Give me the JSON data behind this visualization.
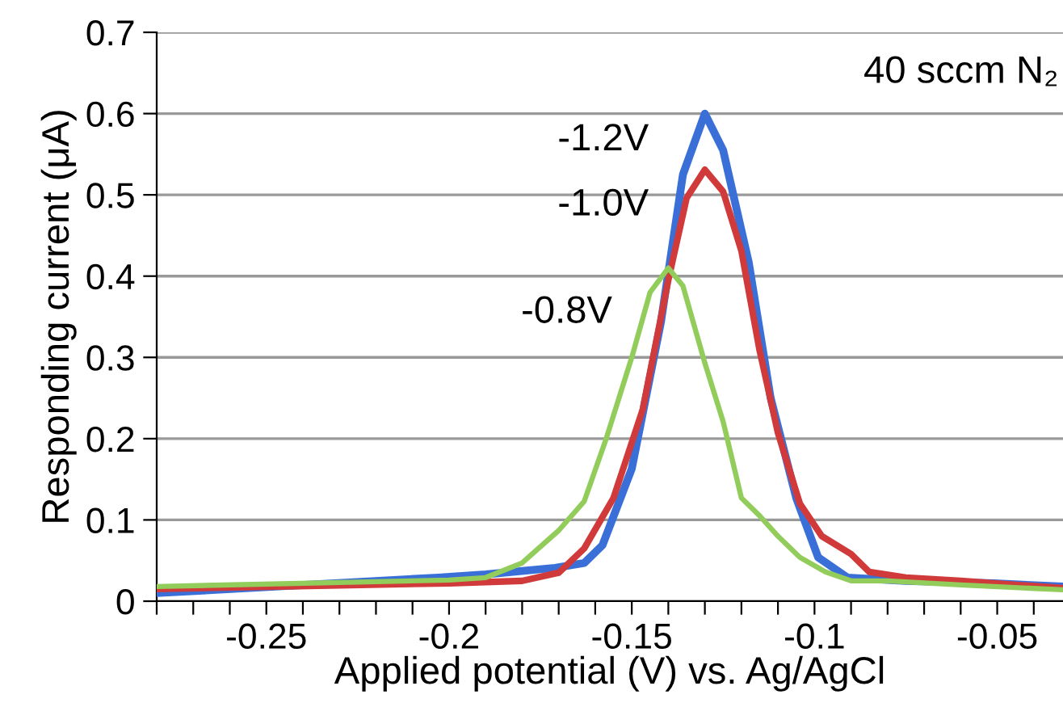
{
  "chart_data": {
    "type": "line",
    "xlabel": "Applied potential (V) vs. Ag/AgCl",
    "ylabel": "Responding current (μA)",
    "annotations": [
      "40 sccm N₂"
    ],
    "xlim": [
      -0.28,
      -0.032
    ],
    "ylim": [
      0,
      0.7
    ],
    "xticks": [
      {
        "value": -0.28,
        "label": null
      },
      {
        "value": -0.27,
        "label": null
      },
      {
        "value": -0.26,
        "label": null
      },
      -0.25,
      {
        "value": -0.24,
        "label": null
      },
      {
        "value": -0.23,
        "label": null
      },
      {
        "value": -0.22,
        "label": null
      },
      {
        "value": -0.21,
        "label": null
      },
      -0.2,
      {
        "value": -0.19,
        "label": null
      },
      {
        "value": -0.18,
        "label": null
      },
      {
        "value": -0.17,
        "label": null
      },
      {
        "value": -0.16,
        "label": null
      },
      -0.15,
      {
        "value": -0.14,
        "label": null
      },
      {
        "value": -0.13,
        "label": null
      },
      {
        "value": -0.12,
        "label": null
      },
      {
        "value": -0.11,
        "label": null
      },
      -0.1,
      {
        "value": -0.09,
        "label": null
      },
      {
        "value": -0.08,
        "label": null
      },
      {
        "value": -0.07,
        "label": null
      },
      {
        "value": -0.06,
        "label": null
      },
      -0.05,
      {
        "value": -0.04,
        "label": null
      }
    ],
    "yticks": [
      0,
      0.1,
      0.2,
      0.3,
      0.4,
      0.5,
      0.6,
      0.7
    ],
    "grid": "y",
    "marker": "none",
    "line_style": "solid",
    "series": [
      {
        "name": "-1.2V",
        "color": "#3a6fd8",
        "x": [
          -0.28,
          -0.203,
          -0.19,
          -0.171,
          -0.163,
          -0.158,
          -0.15,
          -0.142,
          -0.136,
          -0.13,
          -0.125,
          -0.118,
          -0.112,
          -0.105,
          -0.099,
          -0.091,
          -0.075,
          -0.051,
          -0.032
        ],
        "values": [
          0.01,
          0.029,
          0.033,
          0.041,
          0.047,
          0.069,
          0.163,
          0.344,
          0.525,
          0.6,
          0.555,
          0.417,
          0.25,
          0.127,
          0.054,
          0.029,
          0.025,
          0.022,
          0.018
        ]
      },
      {
        "name": "-1.0V",
        "color": "#d03a3a",
        "x": [
          -0.28,
          -0.2,
          -0.18,
          -0.17,
          -0.163,
          -0.155,
          -0.147,
          -0.14,
          -0.135,
          -0.13,
          -0.125,
          -0.12,
          -0.115,
          -0.11,
          -0.104,
          -0.098,
          -0.09,
          -0.085,
          -0.075,
          -0.06,
          -0.032
        ],
        "values": [
          0.015,
          0.022,
          0.025,
          0.035,
          0.065,
          0.127,
          0.236,
          0.395,
          0.496,
          0.531,
          0.504,
          0.431,
          0.308,
          0.207,
          0.12,
          0.08,
          0.058,
          0.036,
          0.029,
          0.025,
          0.016
        ]
      },
      {
        "name": "-0.8V",
        "color": "#92cc5a",
        "x": [
          -0.28,
          -0.22,
          -0.2,
          -0.19,
          -0.18,
          -0.17,
          -0.163,
          -0.157,
          -0.15,
          -0.145,
          -0.14,
          -0.136,
          -0.13,
          -0.125,
          -0.12,
          -0.115,
          -0.11,
          -0.104,
          -0.097,
          -0.09,
          -0.08,
          -0.06,
          -0.032
        ],
        "values": [
          0.018,
          0.024,
          0.026,
          0.029,
          0.047,
          0.087,
          0.123,
          0.2,
          0.3,
          0.38,
          0.41,
          0.388,
          0.293,
          0.221,
          0.127,
          0.105,
          0.08,
          0.054,
          0.036,
          0.025,
          0.025,
          0.02,
          0.014
        ]
      }
    ]
  }
}
